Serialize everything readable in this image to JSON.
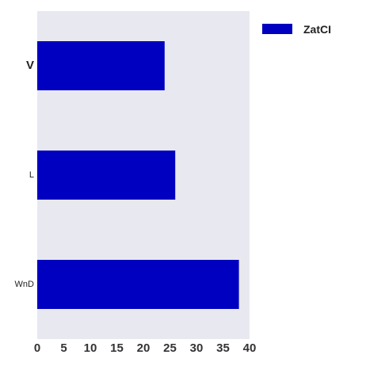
{
  "chart_data": {
    "type": "bar",
    "orientation": "horizontal",
    "categories": [
      "V",
      "L",
      "WnD"
    ],
    "series": [
      {
        "name": "ZatCI",
        "values": [
          24,
          26,
          38
        ],
        "color": "#0000c0"
      }
    ],
    "xlim": [
      0,
      40
    ],
    "xticks": [
      0,
      5,
      10,
      15,
      20,
      25,
      30,
      35,
      40
    ],
    "grid": false,
    "legend": "top-right",
    "plot_background": "#e8e8f1"
  }
}
